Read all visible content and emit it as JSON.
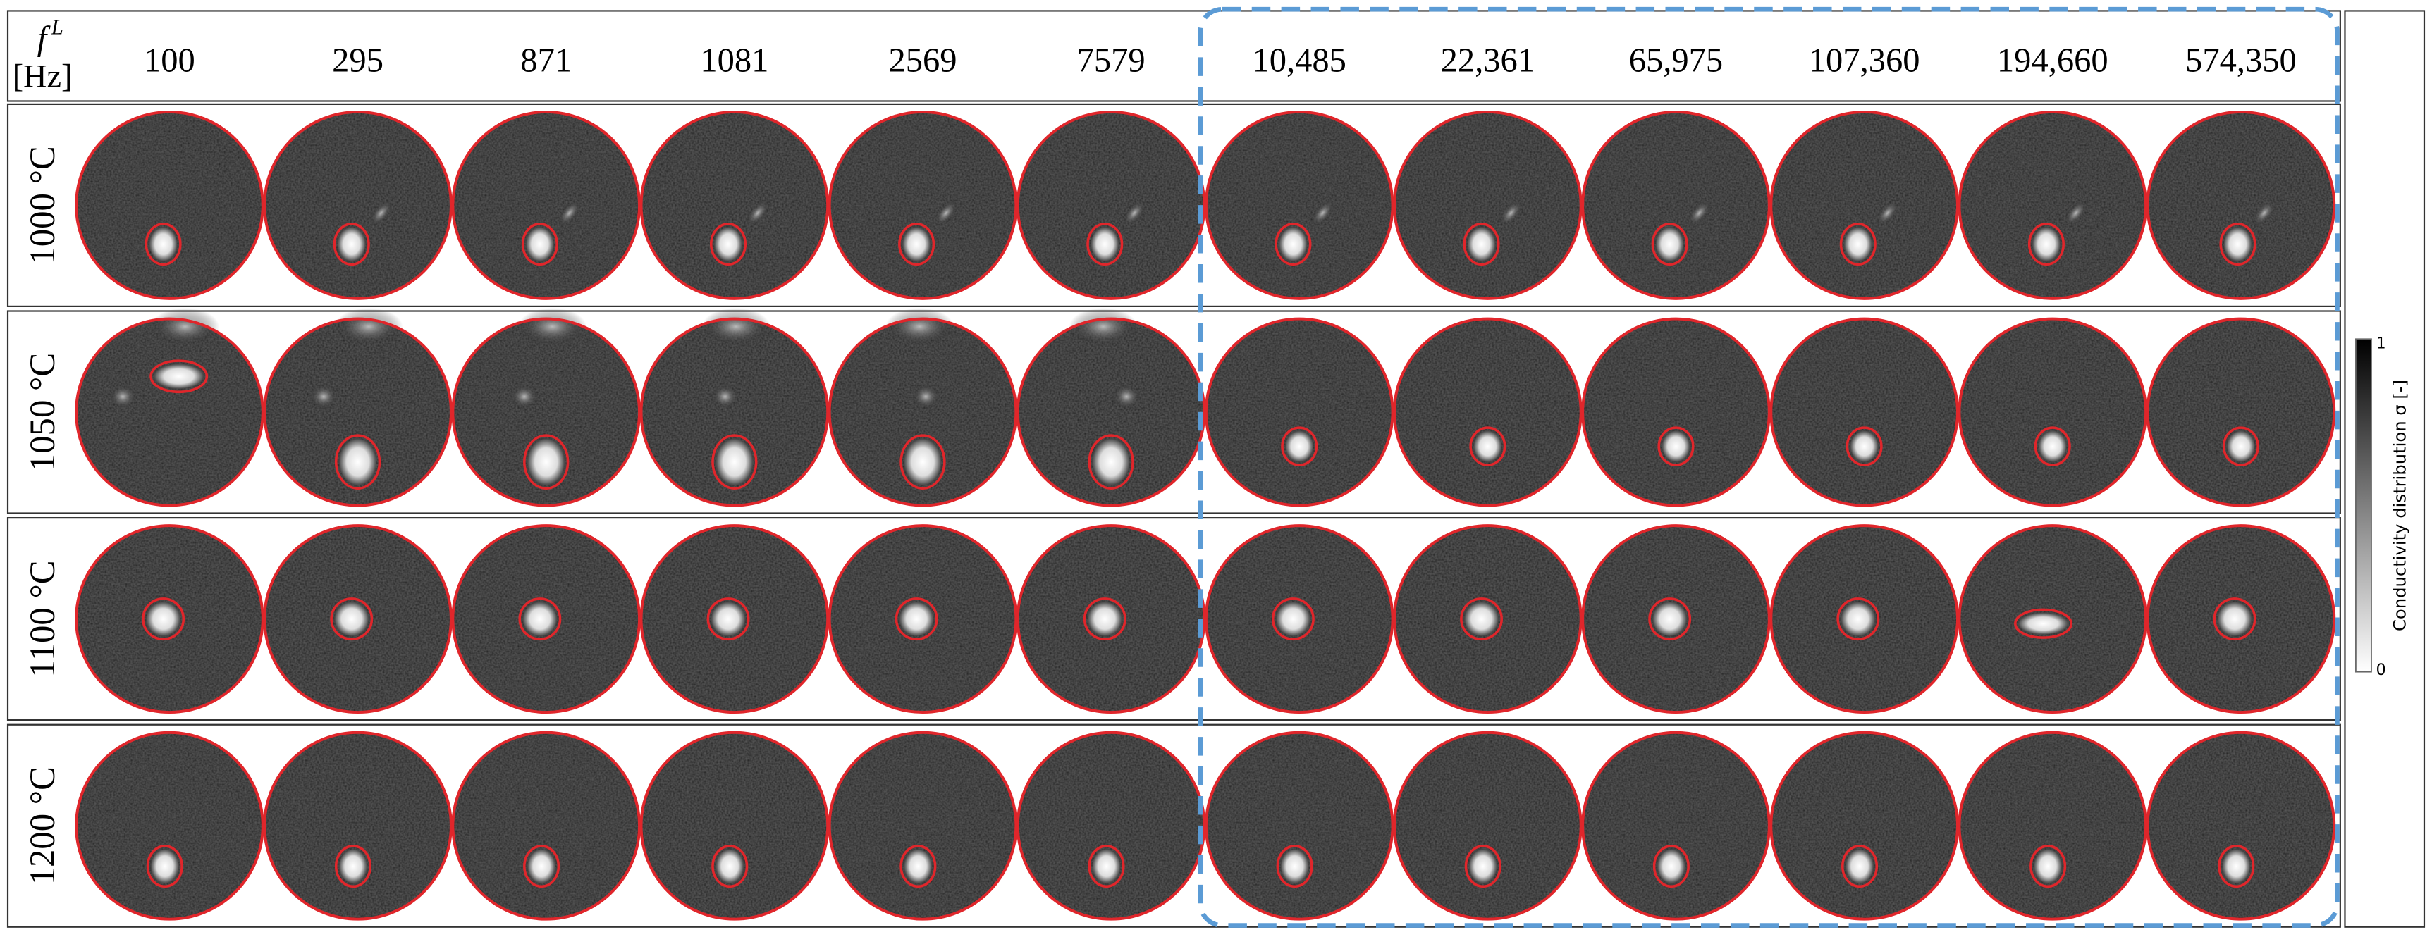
{
  "header": {
    "symbol": "f",
    "symbol_superscript": "L",
    "unit": "[Hz]",
    "frequencies": [
      "100",
      "295",
      "871",
      "1081",
      "2569",
      "7579",
      "10,485",
      "22,361",
      "65,975",
      "107,360",
      "194,660",
      "574,350"
    ]
  },
  "rows": [
    "1000 °C",
    "1050 °C",
    "1100 °C",
    "1200 °C"
  ],
  "colorbar": {
    "label": "Conductivity distribution σ [-]",
    "max_label": "1",
    "min_label": "0"
  }
}
